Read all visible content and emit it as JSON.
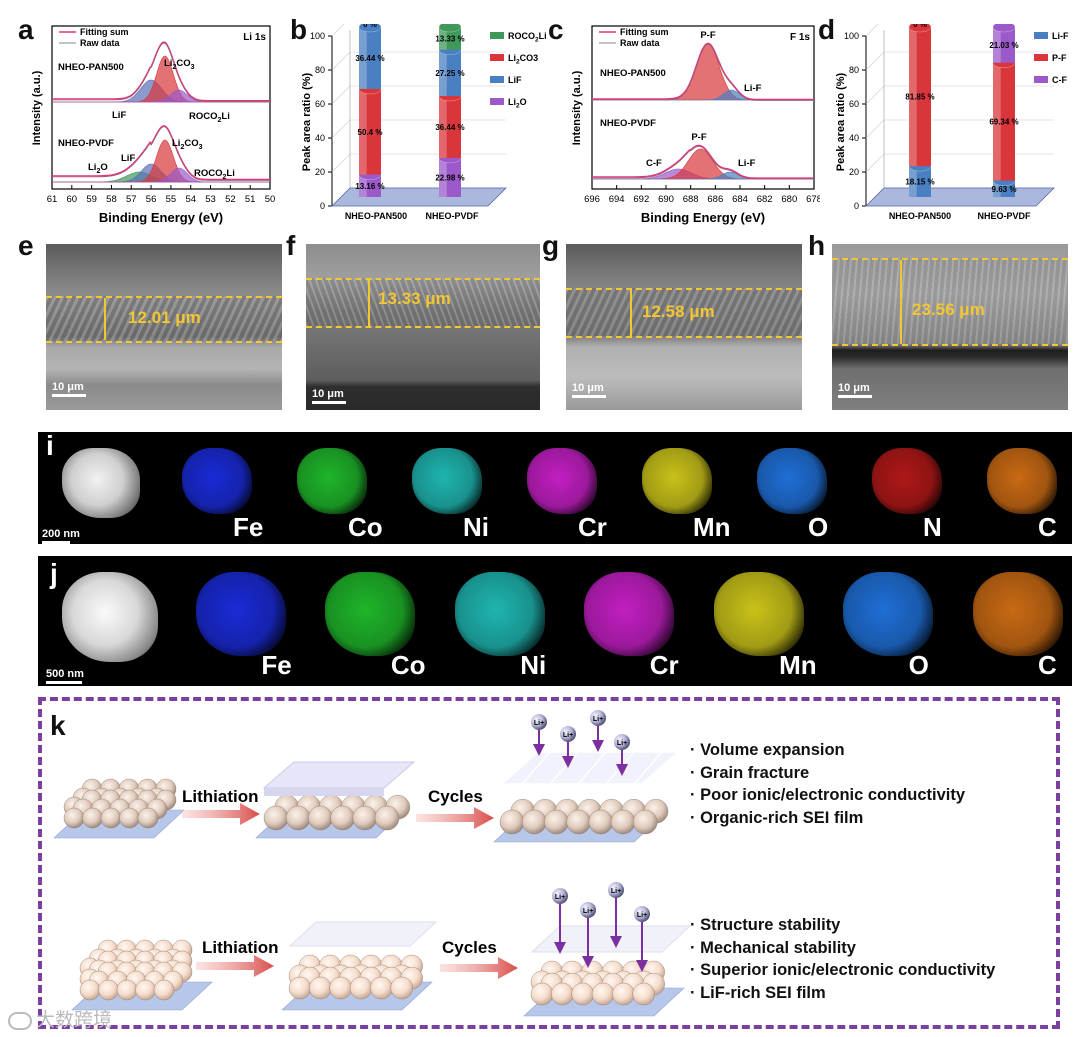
{
  "panel_letters": [
    "a",
    "b",
    "c",
    "d",
    "e",
    "f",
    "g",
    "h",
    "i",
    "j",
    "k"
  ],
  "chart_data": [
    {
      "panel": "a",
      "type": "line",
      "title": "Li 1s",
      "xlabel": "Binding Energy (eV)",
      "ylabel": "Intensity (a.u.)",
      "xlim": [
        61,
        50
      ],
      "xticks": [
        "61",
        "60",
        "59",
        "58",
        "57",
        "56",
        "55",
        "54",
        "53",
        "52",
        "51",
        "50"
      ],
      "legend": [
        "Fitting sum",
        "Raw data"
      ],
      "samples": [
        {
          "name": "NHEO-PAN500",
          "peaks": [
            {
              "label": "LiF",
              "center": 55.9
            },
            {
              "label": "Li2CO3",
              "center": 55.3
            },
            {
              "label": "ROCO2Li",
              "center": 54.6
            }
          ]
        },
        {
          "name": "NHEO-PVDF",
          "peaks": [
            {
              "label": "Li2O",
              "center": 56.6
            },
            {
              "label": "LiF",
              "center": 55.9
            },
            {
              "label": "Li2CO3",
              "center": 55.3
            },
            {
              "label": "ROCO2Li",
              "center": 54.6
            }
          ]
        }
      ]
    },
    {
      "panel": "b",
      "type": "bar",
      "ylabel": "Peak area ratio (%)",
      "ylim": [
        0,
        100
      ],
      "yticks": [
        "0",
        "20",
        "40",
        "60",
        "80",
        "100"
      ],
      "categories": [
        "NHEO-PAN500",
        "NHEO-PVDF"
      ],
      "series": [
        {
          "name": "Li2O",
          "values": [
            13.16,
            22.98
          ],
          "color": "#9b59c9"
        },
        {
          "name": "Li2CO3",
          "values": [
            50.4,
            36.44
          ],
          "color": "#d9363b"
        },
        {
          "name": "LiF",
          "values": [
            36.44,
            27.25
          ],
          "color": "#4a7fc1"
        },
        {
          "name": "ROCO2Li",
          "values": [
            0,
            13.33
          ],
          "color": "#3f9a5a"
        }
      ],
      "value_labels": [
        [
          "13.16 %",
          "50.4 %",
          "36.44 %",
          "0 %"
        ],
        [
          "22.98 %",
          "36.44 %",
          "27.25 %",
          "13.33 %"
        ]
      ],
      "legend": [
        "ROCO2Li",
        "Li2CO3",
        "LiF",
        "Li2O"
      ]
    },
    {
      "panel": "c",
      "type": "line",
      "title": "F 1s",
      "xlabel": "Binding Energy (eV)",
      "ylabel": "Intensity (a.u.)",
      "xlim": [
        696,
        678
      ],
      "xticks": [
        "696",
        "694",
        "692",
        "690",
        "688",
        "686",
        "684",
        "682",
        "680",
        "678"
      ],
      "legend": [
        "Fitting sum",
        "Raw data"
      ],
      "samples": [
        {
          "name": "NHEO-PAN500",
          "peaks": [
            {
              "label": "P-F",
              "center": 686.6
            },
            {
              "label": "Li-F",
              "center": 684.7
            }
          ]
        },
        {
          "name": "NHEO-PVDF",
          "peaks": [
            {
              "label": "C-F",
              "center": 689.0
            },
            {
              "label": "P-F",
              "center": 687.2
            },
            {
              "label": "Li-F",
              "center": 684.8
            }
          ]
        }
      ]
    },
    {
      "panel": "d",
      "type": "bar",
      "ylabel": "Peak area ratio (%)",
      "ylim": [
        0,
        100
      ],
      "yticks": [
        "0",
        "20",
        "40",
        "60",
        "80",
        "100"
      ],
      "categories": [
        "NHEO-PAN500",
        "NHEO-PVDF"
      ],
      "series": [
        {
          "name": "Li-F",
          "values": [
            18.15,
            9.63
          ],
          "color": "#4a7fc1"
        },
        {
          "name": "P-F",
          "values": [
            81.85,
            69.34
          ],
          "color": "#d9363b"
        },
        {
          "name": "C-F",
          "values": [
            0,
            21.03
          ],
          "color": "#9b59c9"
        }
      ],
      "value_labels": [
        [
          "18.15 %",
          "81.85 %",
          "0 %"
        ],
        [
          "9.63 %",
          "69.34 %",
          "21.03 %"
        ]
      ],
      "legend": [
        "Li-F",
        "P-F",
        "C-F"
      ]
    }
  ],
  "sem": [
    {
      "panel": "e",
      "thickness": "12.01 μm",
      "scale": "10 μm"
    },
    {
      "panel": "f",
      "thickness": "13.33 μm",
      "scale": "10 μm"
    },
    {
      "panel": "g",
      "thickness": "12.58 μm",
      "scale": "10 μm"
    },
    {
      "panel": "h",
      "thickness": "23.56 μm",
      "scale": "10 μm"
    }
  ],
  "eds": [
    {
      "panel": "i",
      "scale": "200 nm",
      "elements": [
        "Fe",
        "Co",
        "Ni",
        "Cr",
        "Mn",
        "O",
        "N",
        "C"
      ]
    },
    {
      "panel": "j",
      "scale": "500 nm",
      "elements": [
        "Fe",
        "Co",
        "Ni",
        "Cr",
        "Mn",
        "O",
        "C"
      ]
    }
  ],
  "element_colors": {
    "Fe": "#1a2bd6",
    "Co": "#1fb52a",
    "Ni": "#1fb5b0",
    "Cr": "#c21fc2",
    "Mn": "#c9c21a",
    "O": "#1f6fd6",
    "N": "#b01818",
    "C": "#c96a14"
  },
  "schematic": {
    "top": {
      "step1": "Lithiation",
      "step2": "Cycles",
      "ion": "Li+",
      "bullets": [
        "· Volume expansion",
        "· Grain fracture",
        "· Poor ionic/electronic conductivity",
        "· Organic-rich SEI film"
      ]
    },
    "bottom": {
      "step1": "Lithiation",
      "step2": "Cycles",
      "ion": "Li+",
      "bullets": [
        "· Structure stability",
        "· Mechanical stability",
        "· Superior ionic/electronic conductivity",
        "· LiF-rich SEI film"
      ]
    }
  },
  "watermark": "大数跨境"
}
